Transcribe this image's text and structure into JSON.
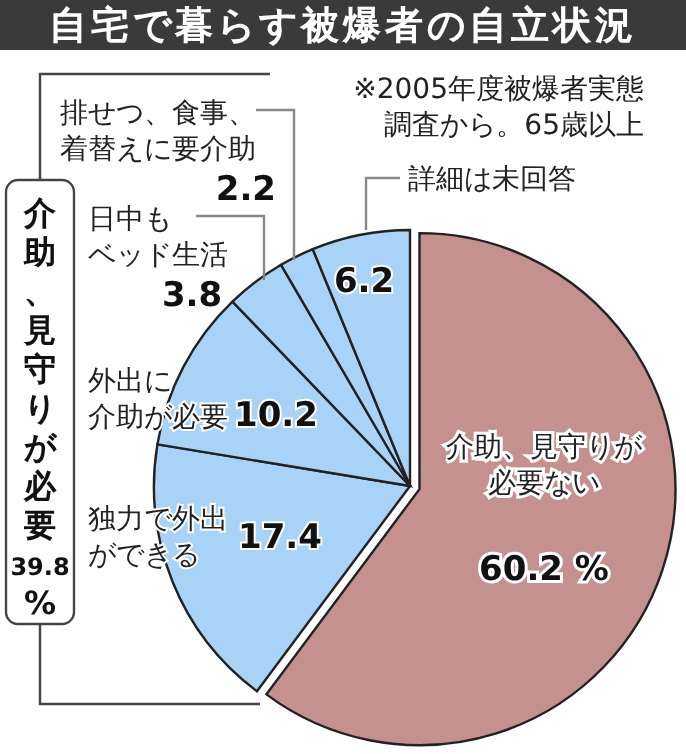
{
  "chart_data": {
    "type": "pie",
    "title": "自宅で暮らす被爆者の自立状況",
    "categories": [
      "介助、見守りが必要ない",
      "独力で外出ができる",
      "外出に介助が必要",
      "日中もベッド生活",
      "排せつ、食事、着替えに要介助",
      "詳細は未回答"
    ],
    "values": [
      60.2,
      17.4,
      10.2,
      3.8,
      2.2,
      6.2
    ],
    "value_labels": [
      "60.2 %",
      "17.4",
      "10.2",
      "3.8",
      "2.2",
      "6.2"
    ],
    "colors": [
      "#c4918f",
      "#a9d2f7",
      "#a9d2f7",
      "#a9d2f7",
      "#a9d2f7",
      "#a9d2f7"
    ],
    "annotations": [
      "※2005年度被爆者実態調査から。65歳以上",
      "介助、見守りが必要39.8%"
    ],
    "legend": false
  }
}
